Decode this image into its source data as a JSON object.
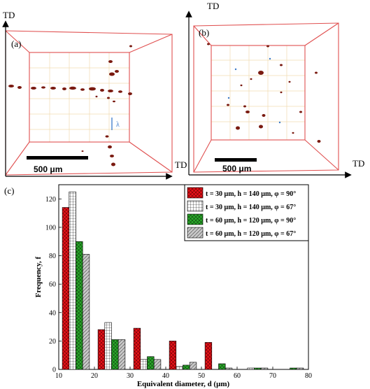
{
  "panels": {
    "a": {
      "label": "(a)",
      "axis_top": "TD",
      "axis_right": "TD",
      "scalebar": "500 μm",
      "annotation": "λ"
    },
    "b": {
      "label": "(b)",
      "axis_top": "TD",
      "axis_right": "TD",
      "scalebar": "500 μm"
    },
    "c": {
      "label": "(c)"
    }
  },
  "colors": {
    "series1": "#e8121a",
    "series2": "#ffffff",
    "series3": "#2aa82a",
    "series4": "#c0c0c0",
    "box": "#e05050",
    "grid": "#f0dcb0",
    "particle": "#7a1a10"
  },
  "chart_data": {
    "type": "bar",
    "xlabel": "Equivalent diameter, d (μm)",
    "ylabel": "Frequency, f",
    "xlim": [
      10,
      80
    ],
    "ylim": [
      0,
      130
    ],
    "xticks": [
      10,
      20,
      30,
      40,
      50,
      60,
      70,
      80
    ],
    "yticks": [
      0,
      20,
      40,
      60,
      80,
      100,
      120
    ],
    "bin_centers": [
      15,
      25,
      35,
      45,
      55,
      65,
      75
    ],
    "series": [
      {
        "name": "t = 30 μm, h = 140 μm, φ = 90°",
        "pattern": "red-cross",
        "values": [
          114,
          28,
          29,
          20,
          19,
          0,
          0
        ]
      },
      {
        "name": "t = 30 μm, h = 140 μm, φ = 67°",
        "pattern": "white-grid",
        "values": [
          125,
          33,
          7,
          2,
          0,
          1,
          0
        ]
      },
      {
        "name": "t = 60 μm, h = 120 μm, φ = 90°",
        "pattern": "green-cross",
        "values": [
          90,
          21,
          9,
          3,
          4,
          1,
          1
        ]
      },
      {
        "name": "t = 60 μm, h = 120 μm, φ = 67°",
        "pattern": "gray-hatch",
        "values": [
          81,
          21,
          7,
          5,
          1,
          1,
          1
        ]
      }
    ]
  }
}
